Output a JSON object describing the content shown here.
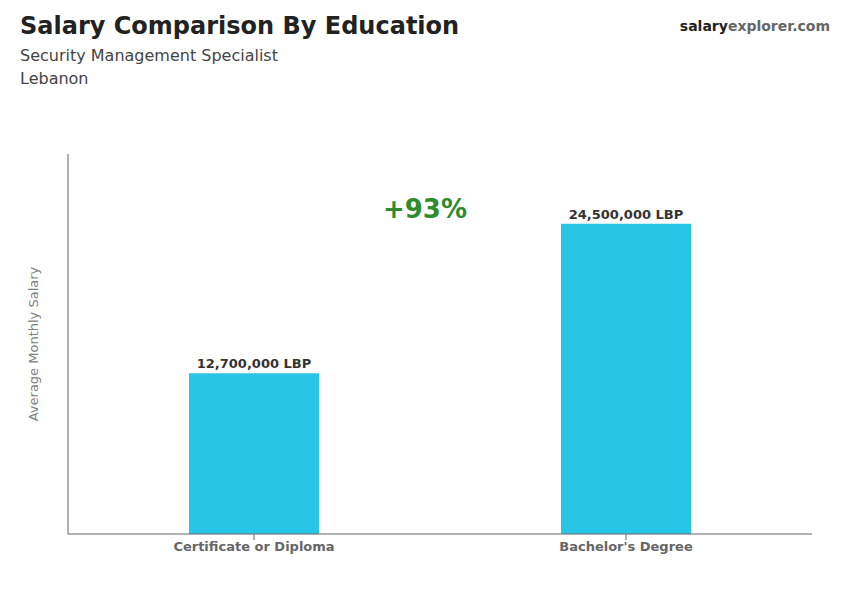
{
  "chart_data": {
    "type": "bar",
    "title": "Salary Comparison By Education",
    "subtitle": "Security Management Specialist",
    "annotations": [
      "Lebanon",
      "salary",
      "explorer.com",
      "+93%"
    ],
    "categories": [
      "Certificate or Diploma",
      "Bachelor's Degree"
    ],
    "values": [
      12700000,
      24500000
    ],
    "value_labels": [
      "12,700,000 LBP",
      "24,500,000 LBP"
    ],
    "data_labels": true,
    "color": "#29c5e6",
    "ylabel": "Average Monthly Salary",
    "ylim": [
      0,
      30000000
    ],
    "tick_labels": "x",
    "grid": false
  }
}
